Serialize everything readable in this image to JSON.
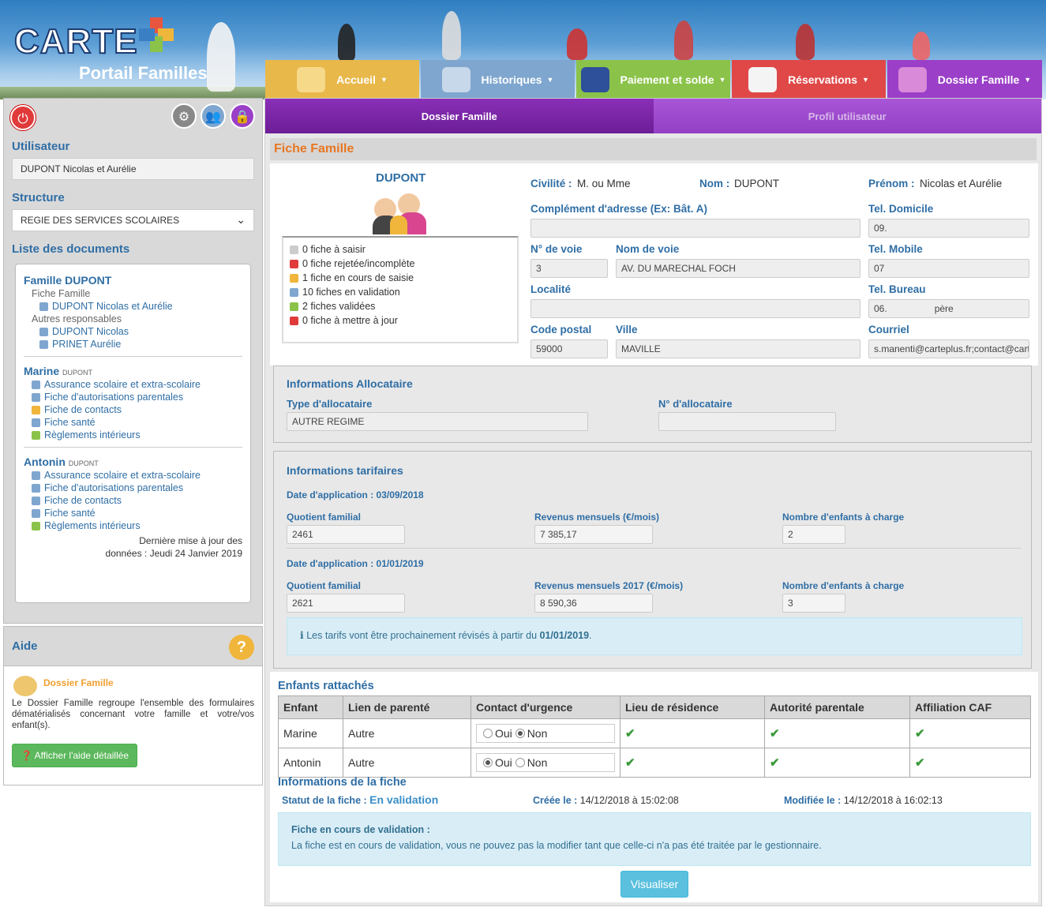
{
  "header": {
    "logo_text": "CARTE",
    "subtitle": "Portail Familles",
    "nav": [
      {
        "label": "Accueil",
        "color": "#e8b84a",
        "icon": "home-icon"
      },
      {
        "label": "Historiques",
        "color": "#7fa6cf",
        "icon": "search-history-icon"
      },
      {
        "label": "Paiement et solde",
        "color": "#8bc34a",
        "icon": "payment-card-icon"
      },
      {
        "label": "Réservations",
        "color": "#e04848",
        "icon": "calendar-icon"
      },
      {
        "label": "Dossier Famille",
        "color": "#9b3fc8",
        "icon": "family-icon"
      }
    ]
  },
  "sidebar": {
    "user_label": "Utilisateur",
    "user_value": "DUPONT Nicolas et Aurélie",
    "structure_label": "Structure",
    "structure_value": "REGIE DES SERVICES SCOLAIRES",
    "docs_label": "Liste des documents",
    "family": {
      "title": "Famille DUPONT",
      "fiche_famille": "Fiche Famille",
      "fiche_famille_item": "DUPONT Nicolas et Aurélie",
      "autres": "Autres responsables",
      "autres_items": [
        "DUPONT Nicolas",
        "PRINET Aurélie"
      ]
    },
    "children": [
      {
        "name": "Marine",
        "surname": "DUPONT",
        "docs": [
          {
            "label": "Assurance scolaire et extra-scolaire",
            "color": "#7fa6cf"
          },
          {
            "label": "Fiche d'autorisations parentales",
            "color": "#7fa6cf"
          },
          {
            "label": "Fiche de contacts",
            "color": "#f0b53b"
          },
          {
            "label": "Fiche santé",
            "color": "#7fa6cf"
          },
          {
            "label": "Règlements intérieurs",
            "color": "#8bc34a"
          }
        ]
      },
      {
        "name": "Antonin",
        "surname": "DUPONT",
        "docs": [
          {
            "label": "Assurance scolaire et extra-scolaire",
            "color": "#7fa6cf"
          },
          {
            "label": "Fiche d'autorisations parentales",
            "color": "#7fa6cf"
          },
          {
            "label": "Fiche de contacts",
            "color": "#7fa6cf"
          },
          {
            "label": "Fiche santé",
            "color": "#7fa6cf"
          },
          {
            "label": "Règlements intérieurs",
            "color": "#8bc34a"
          }
        ]
      }
    ],
    "last_update_1": "Dernière mise à jour des",
    "last_update_2": "données : Jeudi 24 Janvier 2019"
  },
  "aide": {
    "title": "Aide",
    "section": "Dossier Famille",
    "text": "Le Dossier Famille regroupe l'ensemble des formulaires dématérialisés concernant votre famille et votre/vos enfant(s).",
    "button": "Afficher l'aide détaillée"
  },
  "tabs": {
    "active": "Dossier Famille",
    "other": "Profil utilisateur"
  },
  "fiche": {
    "title": "Fiche Famille",
    "family_name": "DUPONT",
    "legend": [
      {
        "text": "0 fiche à saisir",
        "color": "#cccccc"
      },
      {
        "text": "0 fiche rejetée/incomplète",
        "color": "#e03a3a"
      },
      {
        "text": "1 fiche en cours de saisie",
        "color": "#f0b53b"
      },
      {
        "text": "10 fiches en validation",
        "color": "#7fa6cf"
      },
      {
        "text": "2 fiches validées",
        "color": "#8bc34a"
      },
      {
        "text": "0 fiche à mettre à jour",
        "color": "#e03a3a"
      }
    ],
    "civilite_label": "Civilité :",
    "civilite": "M. ou Mme",
    "nom_label": "Nom :",
    "nom": "DUPONT",
    "prenom_label": "Prénom :",
    "prenom": "Nicolas et Aurélie",
    "complement_label": "Complément d'adresse (Ex: Bât. A)",
    "complement": "",
    "tel_dom_label": "Tel. Domicile",
    "tel_dom": "09.",
    "num_voie_label": "N° de voie",
    "num_voie": "3",
    "nom_voie_label": "Nom de voie",
    "nom_voie": "AV. DU MARECHAL FOCH",
    "tel_mob_label": "Tel. Mobile",
    "tel_mob": "07",
    "localite_label": "Localité",
    "localite": "",
    "tel_bur_label": "Tel. Bureau",
    "tel_bur": "06.",
    "tel_bur_suffix": "père",
    "cp_label": "Code postal",
    "cp": "59000",
    "ville_label": "Ville",
    "ville": "MAVILLE",
    "courriel_label": "Courriel",
    "courriel": "s.manenti@carteplus.fr;contact@carteplus.fr"
  },
  "allocataire": {
    "title": "Informations Allocataire",
    "type_label": "Type d'allocataire",
    "type": "AUTRE REGIME",
    "num_label": "N° d'allocataire",
    "num": ""
  },
  "tarifs": {
    "title": "Informations tarifaires",
    "periods": [
      {
        "date": "Date d'application : 03/09/2018",
        "qf_label": "Quotient familial",
        "qf": "2461",
        "rev_label": "Revenus mensuels (€/mois)",
        "rev": "7 385,17",
        "enf_label": "Nombre d'enfants à charge",
        "enf": "2"
      },
      {
        "date": "Date d'application : 01/01/2019",
        "qf_label": "Quotient familial",
        "qf": "2621",
        "rev_label": "Revenus mensuels 2017 (€/mois)",
        "rev": "8 590,36",
        "enf_label": "Nombre d'enfants à charge",
        "enf": "3"
      }
    ],
    "notice_pre": "Les tarifs vont être prochainement révisés à partir du ",
    "notice_date": "01/01/2019",
    "notice_post": "."
  },
  "enfants": {
    "title": "Enfants rattachés",
    "headers": [
      "Enfant",
      "Lien de parenté",
      "Contact d'urgence",
      "Lieu de résidence",
      "Autorité parentale",
      "Affiliation CAF"
    ],
    "oui": "Oui",
    "non": "Non",
    "rows": [
      {
        "name": "Marine",
        "lien": "Autre",
        "urgence": "Non"
      },
      {
        "name": "Antonin",
        "lien": "Autre",
        "urgence": "Oui"
      }
    ]
  },
  "infos_fiche": {
    "title": "Informations de la fiche",
    "statut_label": "Statut de la fiche :",
    "statut": "En validation",
    "creee_label": "Créée le :",
    "creee": "14/12/2018 à 15:02:08",
    "modifiee_label": "Modifiée le :",
    "modifiee": "14/12/2018 à 16:02:13",
    "box_title": "Fiche en cours de validation :",
    "box_text": "La fiche est en cours de validation, vous ne pouvez pas la modifier tant que celle-ci n'a pas été traitée par le gestionnaire.",
    "button": "Visualiser"
  }
}
